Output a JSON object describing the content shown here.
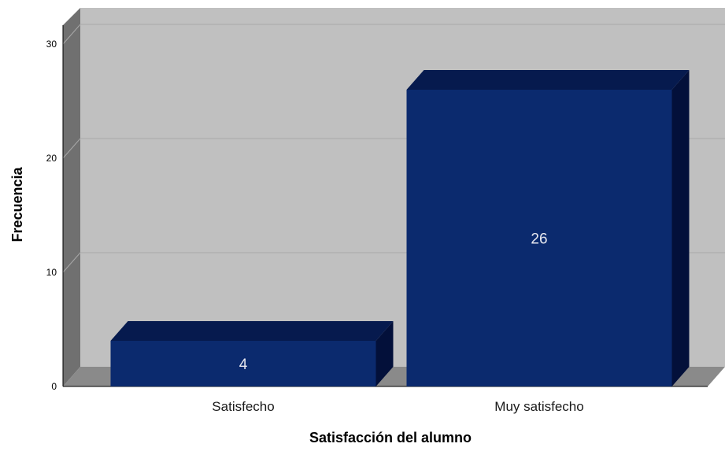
{
  "chart_data": {
    "type": "bar",
    "categories": [
      "Satisfecho",
      "Muy satisfecho"
    ],
    "values": [
      4,
      26
    ],
    "data_labels": [
      "4",
      "26"
    ],
    "xlabel": "Satisfacción del alumno",
    "ylabel": "Frecuencia",
    "ylim": [
      0,
      32
    ],
    "yticks": [
      "0",
      "10",
      "20",
      "30"
    ],
    "grid": true,
    "style": "3d",
    "colors": {
      "bar_front": "#0b2a6e",
      "bar_top": "#061a4e",
      "bar_side": "#03103a",
      "plot_back": "#c0c0c0",
      "wall_side": "#707070",
      "floor": "#8a8a8a",
      "gridline": "#a8a8a8"
    }
  }
}
